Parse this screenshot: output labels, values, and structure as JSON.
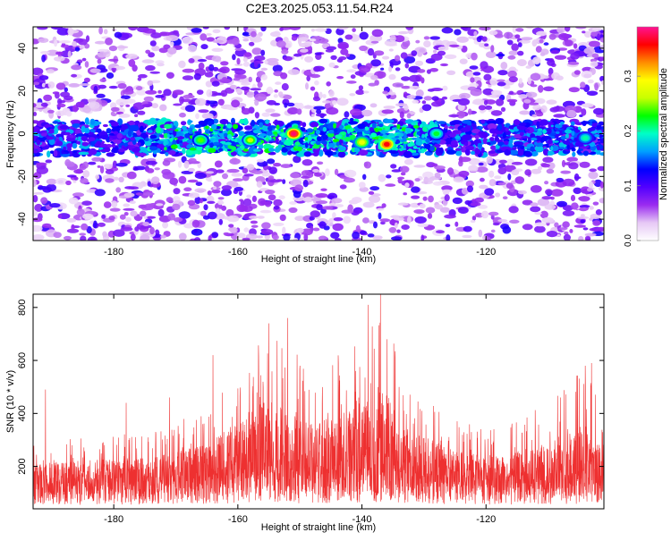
{
  "title": "C2E3.2025.053.11.54.R24",
  "chart_data": [
    {
      "type": "heatmap",
      "title": "C2E3.2025.053.11.54.R24",
      "xlabel": "Height of straight line (km)",
      "ylabel": "Frequency (Hz)",
      "xlim": [
        -193,
        -101
      ],
      "ylim": [
        -50,
        50
      ],
      "xticks": [
        -180,
        -160,
        -140,
        -120
      ],
      "yticks": [
        -40,
        -20,
        0,
        20,
        40
      ],
      "grid": false,
      "colorbar": {
        "label": "Normalized spectral amplitude",
        "range": [
          0,
          0.39
        ],
        "ticks": [
          "0.0",
          "0.1",
          "0.2",
          "0.3"
        ],
        "tick_values": [
          0.0,
          0.1,
          0.2,
          0.3
        ],
        "colors": [
          "#ffffff",
          "#e6c8f5",
          "#9a2cf0",
          "#5200ff",
          "#0000ff",
          "#00a0ff",
          "#00ffc8",
          "#00ff00",
          "#c8ff00",
          "#ffff00",
          "#ff8c00",
          "#ff0000",
          "#ff1493"
        ]
      },
      "band": {
        "center_hz": -2,
        "halfwidth_hz": 8,
        "description": "dominant signal band near 0 Hz across all heights",
        "peaks": [
          {
            "x": -151,
            "y": 0,
            "amp": 0.38
          },
          {
            "x": -136,
            "y": -5,
            "amp": 0.36
          },
          {
            "x": -140,
            "y": -4,
            "amp": 0.28
          },
          {
            "x": -158,
            "y": -3,
            "amp": 0.26
          },
          {
            "x": -166,
            "y": -3,
            "amp": 0.24
          },
          {
            "x": -128,
            "y": 0,
            "amp": 0.22
          },
          {
            "x": -104,
            "y": -2,
            "amp": 0.2
          }
        ]
      }
    },
    {
      "type": "line",
      "xlabel": "Height of straight line (km)",
      "ylabel": "SNR (10 * v/v)",
      "xlim": [
        -193,
        -101
      ],
      "ylim": [
        40,
        850
      ],
      "xticks": [
        -180,
        -160,
        -140,
        -120
      ],
      "yticks": [
        200,
        400,
        600,
        800
      ],
      "grid": false,
      "color": "#ee3030",
      "samples": 3000,
      "baseline": 150,
      "envelope": [
        {
          "x": -193,
          "mean": 150,
          "max": 280
        },
        {
          "x": -185,
          "mean": 145,
          "max": 320
        },
        {
          "x": -175,
          "mean": 150,
          "max": 330
        },
        {
          "x": -165,
          "mean": 175,
          "max": 420
        },
        {
          "x": -155,
          "mean": 215,
          "max": 760
        },
        {
          "x": -148,
          "mean": 190,
          "max": 560
        },
        {
          "x": -141,
          "mean": 215,
          "max": 680
        },
        {
          "x": -137,
          "mean": 245,
          "max": 850
        },
        {
          "x": -133,
          "mean": 205,
          "max": 520
        },
        {
          "x": -125,
          "mean": 160,
          "max": 380
        },
        {
          "x": -118,
          "mean": 150,
          "max": 350
        },
        {
          "x": -110,
          "mean": 165,
          "max": 440
        },
        {
          "x": -104,
          "mean": 180,
          "max": 590
        },
        {
          "x": -101,
          "mean": 175,
          "max": 420
        }
      ],
      "spikes": [
        {
          "x": -137,
          "y": 850
        },
        {
          "x": -139,
          "y": 810
        },
        {
          "x": -152,
          "y": 760
        },
        {
          "x": -155,
          "y": 740
        },
        {
          "x": -164,
          "y": 620
        },
        {
          "x": -150,
          "y": 580
        },
        {
          "x": -103,
          "y": 590
        },
        {
          "x": -104,
          "y": 580
        },
        {
          "x": -141,
          "y": 560
        },
        {
          "x": -134,
          "y": 500
        },
        {
          "x": -191,
          "y": 490
        },
        {
          "x": -171,
          "y": 460
        },
        {
          "x": -178,
          "y": 440
        },
        {
          "x": -108,
          "y": 460
        }
      ]
    }
  ]
}
